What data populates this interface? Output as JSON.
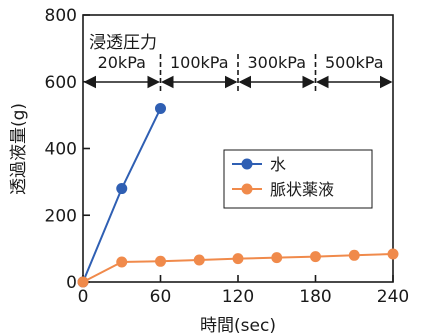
{
  "chart_data": {
    "type": "line",
    "xlabel": "時間(sec)",
    "ylabel": "透過液量(g)",
    "xlim": [
      0,
      240
    ],
    "ylim": [
      0,
      800
    ],
    "xticks": [
      0,
      60,
      120,
      180,
      240
    ],
    "yticks": [
      0,
      200,
      400,
      600,
      800
    ],
    "xtick_labels": [
      "0",
      "60",
      "120",
      "180",
      "240"
    ],
    "ytick_labels": [
      "0",
      "200",
      "400",
      "600",
      "800"
    ],
    "grid": false,
    "legend_position": "center-right",
    "series": [
      {
        "name": "水",
        "color": "#2f5fb3",
        "x": [
          0,
          30,
          60
        ],
        "y": [
          0,
          280,
          520
        ]
      },
      {
        "name": "脈状薬液",
        "color": "#f08a4b",
        "x": [
          0,
          30,
          60,
          90,
          120,
          150,
          180,
          210,
          240
        ],
        "y": [
          0,
          60,
          62,
          66,
          70,
          73,
          76,
          80,
          84
        ]
      }
    ],
    "annotation": {
      "title": "浸透圧力",
      "stages": [
        {
          "label": "20kPa",
          "x_start": 0,
          "x_end": 60
        },
        {
          "label": "100kPa",
          "x_start": 60,
          "x_end": 120
        },
        {
          "label": "300kPa",
          "x_start": 120,
          "x_end": 180
        },
        {
          "label": "500kPa",
          "x_start": 180,
          "x_end": 240
        }
      ]
    }
  }
}
